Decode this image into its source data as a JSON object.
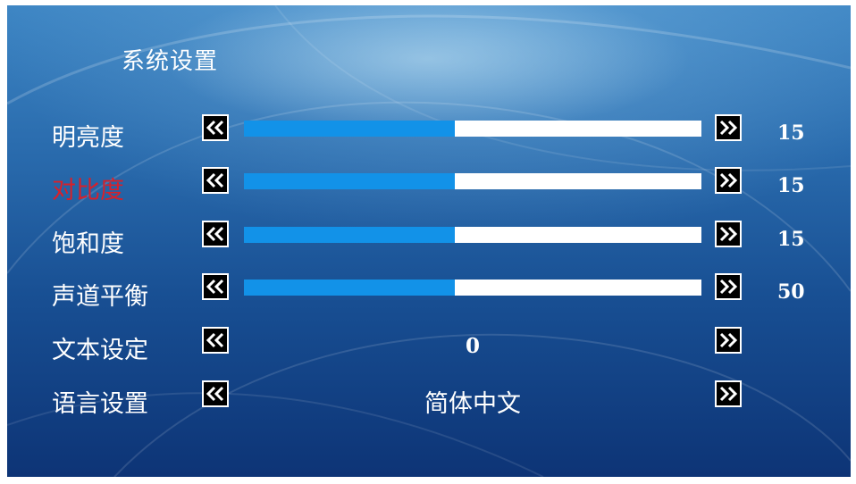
{
  "title": "系统设置",
  "colors": {
    "active_label": "#d8202a",
    "slider_fill": "#1292e8",
    "slider_track": "#ffffff"
  },
  "rows": [
    {
      "label": "明亮度",
      "type": "slider",
      "level": 0.46,
      "value": "15",
      "active": false
    },
    {
      "label": "对比度",
      "type": "slider",
      "level": 0.46,
      "value": "15",
      "active": true
    },
    {
      "label": "饱和度",
      "type": "slider",
      "level": 0.46,
      "value": "15",
      "active": false
    },
    {
      "label": "声道平衡",
      "type": "slider",
      "level": 0.46,
      "value": "50",
      "active": false
    },
    {
      "label": "文本设定",
      "type": "option",
      "value": "0",
      "active": false
    },
    {
      "label": "语言设置",
      "type": "option",
      "value": "简体中文",
      "active": false
    }
  ],
  "icons": {
    "left": "double-left-arrow-icon",
    "right": "double-right-arrow-icon"
  }
}
